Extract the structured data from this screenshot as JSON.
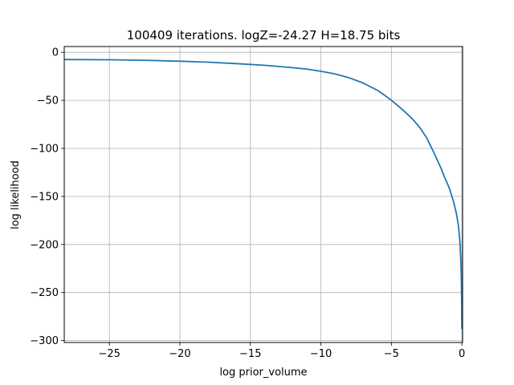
{
  "chart_data": {
    "type": "line",
    "title": "100409 iterations. logZ=-24.27 H=18.75 bits",
    "xlabel": "log prior_volume",
    "ylabel": "log likelihood",
    "xlim": [
      -28.2,
      0.05
    ],
    "ylim": [
      -302,
      6
    ],
    "grid": true,
    "color": "#1f77b4",
    "xticks": [
      -25,
      -20,
      -15,
      -10,
      -5,
      0
    ],
    "xtick_labels": [
      "−25",
      "−20",
      "−15",
      "−10",
      "−5",
      "0"
    ],
    "yticks": [
      0,
      -50,
      -100,
      -150,
      -200,
      -250,
      -300
    ],
    "ytick_labels": [
      "0",
      "−50",
      "−100",
      "−150",
      "−200",
      "−250",
      "−300"
    ],
    "series": [
      {
        "x": [
          -28.2,
          -25,
          -22,
          -20,
          -18,
          -16,
          -14,
          -12,
          -11,
          -10,
          -9,
          -8,
          -7,
          -6,
          -5.5,
          -5,
          -4.5,
          -4,
          -3.5,
          -3,
          -2.5,
          -2,
          -1.5,
          -1.2,
          -0.9,
          -0.6,
          -0.4,
          -0.25,
          -0.15,
          -0.08,
          -0.04,
          -0.02,
          -0.01,
          0
        ],
        "y": [
          -7.5,
          -7.8,
          -8.5,
          -9.3,
          -10.3,
          -11.8,
          -13.5,
          -16,
          -17.5,
          -19.8,
          -22.5,
          -26.5,
          -32,
          -39.5,
          -44.5,
          -50,
          -56,
          -62.5,
          -69.5,
          -78,
          -89,
          -104,
          -120,
          -131,
          -141,
          -155,
          -167,
          -180,
          -195,
          -215,
          -235,
          -255,
          -272,
          -288
        ]
      }
    ]
  }
}
